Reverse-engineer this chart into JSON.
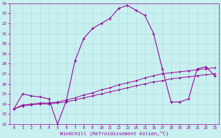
{
  "xlabel": "Windchill (Refroidissement éolien,°C)",
  "bg_color": "#c8f0f0",
  "line_color": "#990099",
  "grid_color": "#b0dede",
  "xlim": [
    -0.5,
    23.5
  ],
  "ylim": [
    22,
    34
  ],
  "xticks": [
    0,
    1,
    2,
    3,
    4,
    5,
    6,
    7,
    8,
    9,
    10,
    11,
    12,
    13,
    14,
    15,
    16,
    17,
    18,
    19,
    20,
    21,
    22,
    23
  ],
  "yticks": [
    22,
    23,
    24,
    25,
    26,
    27,
    28,
    29,
    30,
    31,
    32,
    33,
    34
  ],
  "line1_x": [
    0,
    1,
    2,
    3,
    4,
    5,
    6,
    7,
    8,
    9,
    10,
    11,
    12,
    13,
    14,
    15,
    16,
    17,
    18,
    19,
    20,
    21,
    22,
    23
  ],
  "line1_y": [
    23.5,
    25.0,
    24.8,
    24.7,
    24.5,
    22.0,
    24.3,
    28.3,
    30.5,
    31.5,
    32.0,
    32.5,
    33.5,
    33.8,
    33.3,
    32.8,
    31.0,
    27.5,
    24.2,
    24.2,
    24.5,
    27.5,
    27.7,
    26.8
  ],
  "line2_x": [
    0,
    1,
    2,
    3,
    4,
    5,
    6,
    7,
    8,
    9,
    10,
    11,
    12,
    13,
    14,
    15,
    16,
    17,
    18,
    19,
    20,
    21,
    22,
    23
  ],
  "line2_y": [
    23.5,
    23.8,
    23.9,
    24.0,
    24.0,
    24.1,
    24.2,
    24.4,
    24.6,
    24.8,
    25.0,
    25.2,
    25.4,
    25.6,
    25.8,
    26.0,
    26.2,
    26.3,
    26.5,
    26.6,
    26.7,
    26.8,
    26.9,
    27.0
  ],
  "line3_x": [
    0,
    1,
    2,
    3,
    4,
    5,
    6,
    7,
    8,
    9,
    10,
    11,
    12,
    13,
    14,
    15,
    16,
    17,
    18,
    19,
    20,
    21,
    22,
    23
  ],
  "line3_y": [
    23.5,
    23.9,
    24.0,
    24.1,
    24.1,
    24.2,
    24.4,
    24.6,
    24.9,
    25.1,
    25.4,
    25.6,
    25.9,
    26.1,
    26.3,
    26.6,
    26.8,
    27.0,
    27.1,
    27.2,
    27.3,
    27.4,
    27.5,
    27.6
  ]
}
